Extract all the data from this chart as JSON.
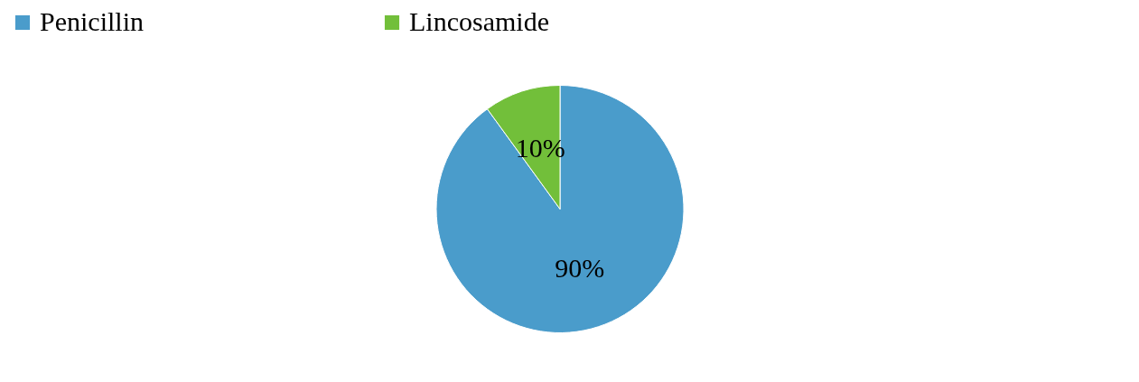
{
  "chart_data": {
    "type": "pie",
    "categories": [
      "Penicillin",
      "Lincosamide"
    ],
    "values": [
      90,
      10
    ],
    "colors": [
      "#4a9ccb",
      "#72bf3a"
    ],
    "value_labels": [
      "90%",
      "10%"
    ],
    "legend": "top"
  }
}
